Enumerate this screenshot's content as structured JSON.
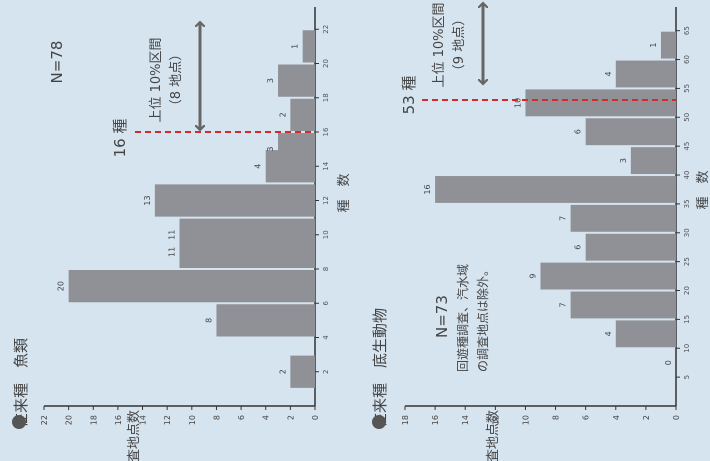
{
  "charts": [
    {
      "title": "在来種　魚類",
      "n_label": "N=78",
      "threshold_label": "16 種",
      "interval_label1": "上位 10%区間",
      "interval_label2": "（8 地点）",
      "x_axis_label": "種　数",
      "y_axis_label": "調査地点数",
      "note1": "",
      "note2": ""
    },
    {
      "title": "在来種　底生動物",
      "n_label": "N=73",
      "threshold_label": "53 種",
      "interval_label1": "上位 10%区間",
      "interval_label2": "（9 地点）",
      "x_axis_label": "種　数",
      "y_axis_label": "調査地点数",
      "note1": "回遊種調査、汽水域",
      "note2": "の調査地点は除外。"
    }
  ],
  "chart_data": [
    {
      "type": "bar",
      "title": "在来種　魚類",
      "xlabel": "種　数",
      "ylabel": "調査地点数",
      "x_ticks": [
        2,
        4,
        6,
        8,
        10,
        12,
        14,
        16,
        18,
        20,
        22
      ],
      "y_ticks": [
        0,
        2,
        4,
        6,
        8,
        10,
        12,
        14,
        16,
        18,
        20,
        22
      ],
      "ylim": [
        0,
        22
      ],
      "bar_centers": [
        2,
        5,
        7,
        9,
        10,
        12,
        14,
        15,
        17,
        19,
        21
      ],
      "values": [
        2,
        8,
        20,
        11,
        11,
        13,
        4,
        3,
        2,
        3,
        1
      ],
      "threshold_x": 16,
      "n": 78
    },
    {
      "type": "bar",
      "title": "在来種　底生動物",
      "xlabel": "種　数",
      "ylabel": "調査地点数",
      "x_ticks": [
        5,
        10,
        15,
        20,
        25,
        30,
        35,
        40,
        45,
        50,
        55,
        60,
        65
      ],
      "y_ticks": [
        0,
        2,
        4,
        6,
        8,
        10,
        12,
        14,
        16,
        18
      ],
      "ylim": [
        0,
        18
      ],
      "bar_centers": [
        7.5,
        12.5,
        17.5,
        22.5,
        27.5,
        32.5,
        37.5,
        42.5,
        47.5,
        52.5,
        57.5,
        62.5
      ],
      "values": [
        0,
        4,
        7,
        9,
        6,
        7,
        16,
        3,
        6,
        10,
        4,
        1
      ],
      "threshold_x": 53,
      "n": 73
    }
  ]
}
